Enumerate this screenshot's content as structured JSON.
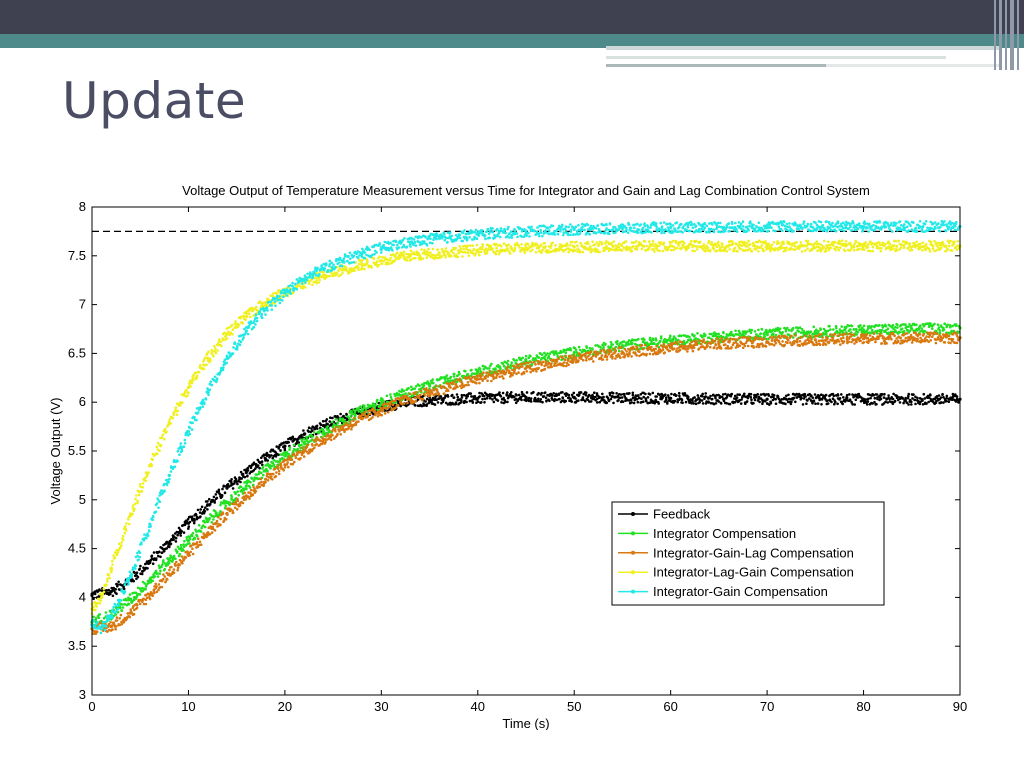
{
  "slide": {
    "title": "Update"
  },
  "chart_data": {
    "type": "scatter",
    "title": "Voltage Output of Temperature Measurement versus Time for Integrator and Gain and Lag Combination Control System",
    "xlabel": "Time (s)",
    "ylabel": "Voltage Output (V)",
    "xlim": [
      0,
      90
    ],
    "ylim": [
      3,
      8
    ],
    "xticks": [
      0,
      10,
      20,
      30,
      40,
      50,
      60,
      70,
      80,
      90
    ],
    "yticks": [
      3,
      3.5,
      4,
      4.5,
      5,
      5.5,
      6,
      6.5,
      7,
      7.5,
      8
    ],
    "grid": false,
    "legend_position": "lower-right",
    "reference_line": {
      "y": 7.75,
      "style": "dashed",
      "color": "#000000"
    },
    "series": [
      {
        "name": "Feedback",
        "color": "#000000",
        "x": [
          0,
          2,
          4,
          6,
          8,
          10,
          12,
          14,
          16,
          18,
          20,
          22,
          24,
          26,
          28,
          30,
          32,
          35,
          40,
          45,
          50,
          60,
          70,
          80,
          90
        ],
        "y": [
          4.02,
          4.06,
          4.18,
          4.36,
          4.56,
          4.76,
          4.95,
          5.12,
          5.28,
          5.42,
          5.55,
          5.67,
          5.76,
          5.84,
          5.9,
          5.95,
          5.99,
          6.02,
          6.04,
          6.05,
          6.05,
          6.04,
          6.03,
          6.03,
          6.03
        ]
      },
      {
        "name": "Integrator Compensation",
        "color": "#22e022",
        "x": [
          0,
          2,
          4,
          6,
          8,
          10,
          12,
          14,
          16,
          18,
          20,
          22,
          24,
          26,
          28,
          30,
          32,
          35,
          40,
          45,
          50,
          55,
          60,
          65,
          70,
          75,
          80,
          85,
          90
        ],
        "y": [
          3.75,
          3.82,
          3.98,
          4.18,
          4.38,
          4.58,
          4.78,
          4.97,
          5.14,
          5.3,
          5.45,
          5.58,
          5.7,
          5.81,
          5.91,
          5.99,
          6.07,
          6.17,
          6.31,
          6.42,
          6.51,
          6.58,
          6.63,
          6.67,
          6.7,
          6.72,
          6.74,
          6.75,
          6.76
        ]
      },
      {
        "name": "Integrator-Gain-Lag Compensation",
        "color": "#d9780f",
        "x": [
          0,
          2,
          4,
          6,
          8,
          10,
          12,
          14,
          16,
          18,
          20,
          22,
          24,
          26,
          28,
          30,
          32,
          35,
          40,
          45,
          50,
          55,
          60,
          65,
          70,
          75,
          80,
          85,
          90
        ],
        "y": [
          3.68,
          3.7,
          3.84,
          4.03,
          4.24,
          4.45,
          4.66,
          4.86,
          5.04,
          5.21,
          5.36,
          5.5,
          5.62,
          5.73,
          5.83,
          5.92,
          6.0,
          6.1,
          6.24,
          6.35,
          6.44,
          6.51,
          6.56,
          6.6,
          6.62,
          6.64,
          6.65,
          6.66,
          6.66
        ]
      },
      {
        "name": "Integrator-Lag-Gain Compensation",
        "color": "#f0f020",
        "x": [
          0,
          1,
          2,
          4,
          6,
          8,
          10,
          12,
          14,
          16,
          18,
          20,
          22,
          24,
          26,
          28,
          30,
          33,
          36,
          40,
          45,
          50,
          60,
          70,
          80,
          90
        ],
        "y": [
          3.88,
          4.0,
          4.3,
          4.85,
          5.35,
          5.78,
          6.15,
          6.45,
          6.7,
          6.88,
          7.02,
          7.13,
          7.22,
          7.3,
          7.36,
          7.41,
          7.45,
          7.5,
          7.53,
          7.56,
          7.58,
          7.59,
          7.6,
          7.6,
          7.6,
          7.6
        ]
      },
      {
        "name": "Integrator-Gain Compensation",
        "color": "#22e8e8",
        "x": [
          0,
          1,
          2,
          4,
          6,
          8,
          10,
          12,
          14,
          16,
          18,
          20,
          22,
          24,
          26,
          28,
          30,
          33,
          36,
          40,
          45,
          50,
          55,
          60,
          70,
          80,
          90
        ],
        "y": [
          3.72,
          3.68,
          3.8,
          4.22,
          4.75,
          5.25,
          5.7,
          6.1,
          6.45,
          6.73,
          6.95,
          7.12,
          7.26,
          7.37,
          7.45,
          7.52,
          7.58,
          7.64,
          7.68,
          7.72,
          7.75,
          7.77,
          7.78,
          7.79,
          7.8,
          7.8,
          7.8
        ]
      }
    ]
  }
}
